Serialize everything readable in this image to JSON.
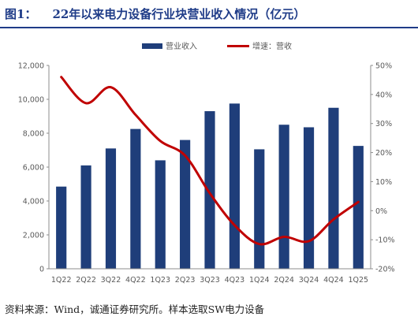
{
  "header": {
    "figure_label": "图1：",
    "title": "22年以来电力设备行业块营业收入情况（亿元）"
  },
  "footer": {
    "source": "资料来源：Wind，诚通证券研究所。样本选取SW电力设备"
  },
  "colors": {
    "bar": "#1f3e7a",
    "line": "#c00000",
    "title": "#1f3c88"
  },
  "chart_data": {
    "type": "bar",
    "title": "22年以来电力设备行业块营业收入情况（亿元）",
    "categories": [
      "1Q22",
      "2Q22",
      "3Q22",
      "4Q22",
      "1Q23",
      "2Q23",
      "3Q23",
      "4Q23",
      "1Q24",
      "2Q24",
      "3Q24",
      "4Q24",
      "1Q25"
    ],
    "series": [
      {
        "name": "营业收入",
        "type": "bar",
        "axis": "left",
        "values": [
          4850,
          6100,
          7100,
          8250,
          6400,
          7600,
          9300,
          9750,
          7050,
          8500,
          8350,
          9500,
          7250
        ]
      },
      {
        "name": "增速：营收",
        "type": "line",
        "axis": "right",
        "unit": "%",
        "values": [
          46,
          37,
          42.5,
          33,
          24,
          19,
          6,
          -5,
          -11.5,
          -9,
          -10.5,
          -3,
          3
        ]
      }
    ],
    "y_left": {
      "min": 0,
      "max": 12000,
      "ticks": [
        "0",
        "2,000",
        "4,000",
        "6,000",
        "8,000",
        "10,000",
        "12,000"
      ]
    },
    "y_right": {
      "min": -20,
      "max": 50,
      "ticks": [
        "-20%",
        "-10%",
        "0%",
        "10%",
        "20%",
        "30%",
        "40%",
        "50%"
      ]
    },
    "legend_position": "top-center",
    "grid": false
  }
}
